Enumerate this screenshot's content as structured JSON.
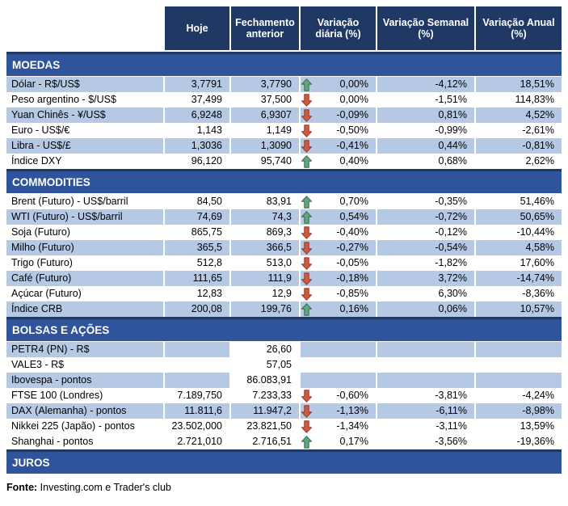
{
  "header": {
    "columns": [
      "Hoje",
      "Fechamento anterior",
      "Variação diária (%)",
      "Variação Semanal (%)",
      "Variação Anual (%)"
    ]
  },
  "colors": {
    "header_bg": "#1F3864",
    "section_bg": "#30549B",
    "row_shade": "#B6C9E4",
    "arrow_up_fill": "#63A57C",
    "arrow_up_stroke": "#3E7257",
    "arrow_down_fill": "#CE5B41",
    "arrow_down_stroke": "#983F2A"
  },
  "sections": [
    {
      "title": "MOEDAS",
      "rows": [
        {
          "name": "Dólar - R$/US$",
          "today": "3,7791",
          "prev_close": "3,7790",
          "arrow": "up",
          "daily": "0,00%",
          "weekly": "-4,12%",
          "annual": "18,51%",
          "shaded": true,
          "prev_plain": false
        },
        {
          "name": "Peso argentino - $/US$",
          "today": "37,499",
          "prev_close": "37,500",
          "arrow": "down",
          "daily": "0,00%",
          "weekly": "-1,51%",
          "annual": "114,83%",
          "shaded": false,
          "prev_plain": false
        },
        {
          "name": "Yuan Chinês - ¥/US$",
          "today": "6,9248",
          "prev_close": "6,9307",
          "arrow": "down",
          "daily": "-0,09%",
          "weekly": "0,81%",
          "annual": "4,52%",
          "shaded": true,
          "prev_plain": false
        },
        {
          "name": "Euro - US$/€",
          "today": "1,143",
          "prev_close": "1,149",
          "arrow": "down",
          "daily": "-0,50%",
          "weekly": "-0,99%",
          "annual": "-2,61%",
          "shaded": false,
          "prev_plain": false
        },
        {
          "name": "Libra - US$/£",
          "today": "1,3036",
          "prev_close": "1,3090",
          "arrow": "down",
          "daily": "-0,41%",
          "weekly": "0,44%",
          "annual": "-0,81%",
          "shaded": true,
          "prev_plain": false
        },
        {
          "name": "Índice DXY",
          "today": "96,120",
          "prev_close": "95,740",
          "arrow": "up",
          "daily": "0,40%",
          "weekly": "0,68%",
          "annual": "2,62%",
          "shaded": false,
          "prev_plain": false
        }
      ]
    },
    {
      "title": "COMMODITIES",
      "rows": [
        {
          "name": "Brent (Futuro) - US$/barril",
          "today": "84,50",
          "prev_close": "83,91",
          "arrow": "up",
          "daily": "0,70%",
          "weekly": "-0,35%",
          "annual": "51,46%",
          "shaded": false,
          "prev_plain": false
        },
        {
          "name": "WTI (Futuro) - US$/barril",
          "today": "74,69",
          "prev_close": "74,3",
          "arrow": "up",
          "daily": "0,54%",
          "weekly": "-0,72%",
          "annual": "50,65%",
          "shaded": true,
          "prev_plain": false
        },
        {
          "name": "Soja (Futuro)",
          "today": "865,75",
          "prev_close": "869,3",
          "arrow": "down",
          "daily": "-0,40%",
          "weekly": "-0,12%",
          "annual": "-10,44%",
          "shaded": false,
          "prev_plain": false
        },
        {
          "name": "Milho (Futuro)",
          "today": "365,5",
          "prev_close": "366,5",
          "arrow": "down",
          "daily": "-0,27%",
          "weekly": "-0,54%",
          "annual": "4,58%",
          "shaded": true,
          "prev_plain": false
        },
        {
          "name": "Trigo (Futuro)",
          "today": "512,8",
          "prev_close": "513,0",
          "arrow": "down",
          "daily": "-0,05%",
          "weekly": "-1,82%",
          "annual": "17,60%",
          "shaded": false,
          "prev_plain": false
        },
        {
          "name": "Café (Futuro)",
          "today": "111,65",
          "prev_close": "111,9",
          "arrow": "down",
          "daily": "-0,18%",
          "weekly": "3,72%",
          "annual": "-14,74%",
          "shaded": true,
          "prev_plain": false
        },
        {
          "name": "Açúcar (Futuro)",
          "today": "12,83",
          "prev_close": "12,9",
          "arrow": "down",
          "daily": "-0,85%",
          "weekly": "6,30%",
          "annual": "-8,36%",
          "shaded": false,
          "prev_plain": false
        },
        {
          "name": "Índice CRB",
          "today": "200,08",
          "prev_close": "199,76",
          "arrow": "up",
          "daily": "0,16%",
          "weekly": "0,06%",
          "annual": "10,57%",
          "shaded": true,
          "prev_plain": false
        }
      ]
    },
    {
      "title": "BOLSAS E AÇÕES",
      "rows": [
        {
          "name": "PETR4 (PN) - R$",
          "today": "",
          "prev_close": "26,60",
          "arrow": null,
          "daily": "",
          "weekly": "",
          "annual": "",
          "shaded": true,
          "prev_plain": true
        },
        {
          "name": "VALE3 - R$",
          "today": "",
          "prev_close": "57,05",
          "arrow": null,
          "daily": "",
          "weekly": "",
          "annual": "",
          "shaded": false,
          "prev_plain": false
        },
        {
          "name": "Ibovespa - pontos",
          "today": "",
          "prev_close": "86.083,91",
          "arrow": null,
          "daily": "",
          "weekly": "",
          "annual": "",
          "shaded": true,
          "prev_plain": true
        },
        {
          "name": "FTSE 100 (Londres)",
          "today": "7.189,750",
          "prev_close": "7.233,33",
          "arrow": "down",
          "daily": "-0,60%",
          "weekly": "-3,81%",
          "annual": "-4,24%",
          "shaded": false,
          "prev_plain": false
        },
        {
          "name": "DAX (Alemanha) - pontos",
          "today": "11.811,6",
          "prev_close": "11.947,2",
          "arrow": "down",
          "daily": "-1,13%",
          "weekly": "-6,11%",
          "annual": "-8,98%",
          "shaded": true,
          "prev_plain": false
        },
        {
          "name": "Nikkei 225 (Japão) - pontos",
          "today": "23.502,000",
          "prev_close": "23.821,50",
          "arrow": "down",
          "daily": "-1,34%",
          "weekly": "-3,11%",
          "annual": "13,59%",
          "shaded": false,
          "prev_plain": false
        },
        {
          "name": "Shanghai - pontos",
          "today": "2.721,010",
          "prev_close": "2.716,51",
          "arrow": "up",
          "daily": "0,17%",
          "weekly": "-3,56%",
          "annual": "-19,36%",
          "shaded": false,
          "prev_plain": false
        }
      ]
    },
    {
      "title": "JUROS",
      "rows": []
    }
  ],
  "footer": {
    "source_label": "Fonte:",
    "source_text": " Investing.com e Trader's club"
  }
}
